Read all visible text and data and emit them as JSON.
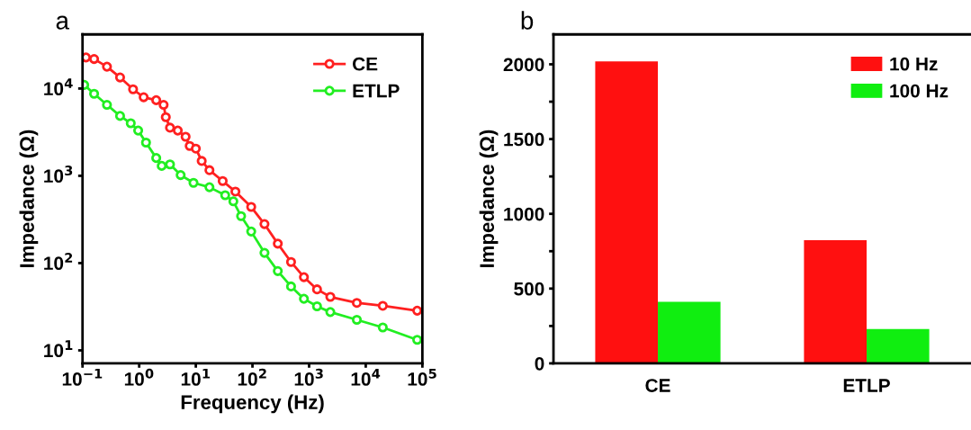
{
  "chart_data": [
    {
      "type": "line",
      "xlabel": "Frequency (Hz)",
      "ylabel": "Impedance (Ω)",
      "log": "xy",
      "annotations": [
        "a"
      ],
      "xlim": [
        0.1,
        100000
      ],
      "xticks": [
        {
          "value": 0.1,
          "label": "10$^{−1}$"
        },
        {
          "value": 1,
          "label": "10$^{0}$"
        },
        {
          "value": 10,
          "label": "10$^{1}$"
        },
        {
          "value": 100,
          "label": "10$^{2}$"
        },
        {
          "value": 1000,
          "label": "10$^{3}$"
        },
        {
          "value": 10000,
          "label": "10$^{4}$"
        },
        {
          "value": 100000,
          "label": "10$^{5}$"
        }
      ],
      "ylim": [
        7.1,
        41700
      ],
      "yticks": [
        {
          "value": 10,
          "label": "10$^{1}$"
        },
        {
          "value": 100,
          "label": "10$^{2}$"
        },
        {
          "value": 1000,
          "label": "10$^{3}$"
        },
        {
          "value": 10000,
          "label": "10$^{4}$"
        }
      ],
      "marker": "circle",
      "line_style": "solid",
      "legend": "top right",
      "grid": false,
      "series": [
        {
          "name": "CE",
          "color": "#ff2020",
          "x": [
            0.115,
            0.16,
            0.27,
            0.46,
            0.78,
            1.2,
            2.0,
            2.7,
            2.95,
            3.5,
            4.8,
            6.6,
            7.8,
            10,
            12.7,
            17.4,
            29.8,
            50,
            95,
            163,
            280,
            480,
            810,
            1380,
            2370,
            6960,
            20000,
            81000
          ],
          "values": [
            22700,
            21800,
            17800,
            13400,
            9800,
            7950,
            7350,
            6500,
            4700,
            3560,
            3300,
            2800,
            2200,
            2050,
            1480,
            1160,
            870,
            660,
            440,
            280,
            167,
            103,
            69,
            50,
            41,
            35,
            32.4,
            28.5
          ]
        },
        {
          "name": "ETLP",
          "color": "#22ee22",
          "x": [
            0.107,
            0.16,
            0.27,
            0.46,
            0.71,
            0.96,
            1.32,
            2.0,
            2.5,
            3.5,
            5.4,
            9.1,
            17.4,
            33,
            46,
            63,
            95,
            163,
            280,
            480,
            810,
            1380,
            2370,
            6960,
            20000,
            81000
          ],
          "values": [
            11000,
            8700,
            6500,
            4850,
            4000,
            3300,
            2400,
            1600,
            1300,
            1350,
            1020,
            830,
            740,
            600,
            510,
            345,
            230,
            131,
            81,
            54,
            39,
            32,
            27.5,
            22.4,
            18.3,
            13.2
          ]
        }
      ]
    },
    {
      "type": "bar",
      "ylabel": "Impedance (Ω)",
      "annotations": [
        "b"
      ],
      "categories": [
        "CE",
        "ETLP"
      ],
      "ylim": [
        0,
        2200
      ],
      "yticks": [
        0,
        {
          "value": 250,
          "label": null
        },
        500,
        {
          "value": 750,
          "label": null
        },
        1000,
        {
          "value": 1250,
          "label": null
        },
        1500,
        {
          "value": 1750,
          "label": null
        },
        2000
      ],
      "legend": "top right",
      "grid": false,
      "series": [
        {
          "name": "10 Hz",
          "color": "#ff1010",
          "values": [
            2020,
            824
          ]
        },
        {
          "name": "100 Hz",
          "color": "#10ee10",
          "values": [
            412,
            229
          ]
        }
      ]
    }
  ]
}
